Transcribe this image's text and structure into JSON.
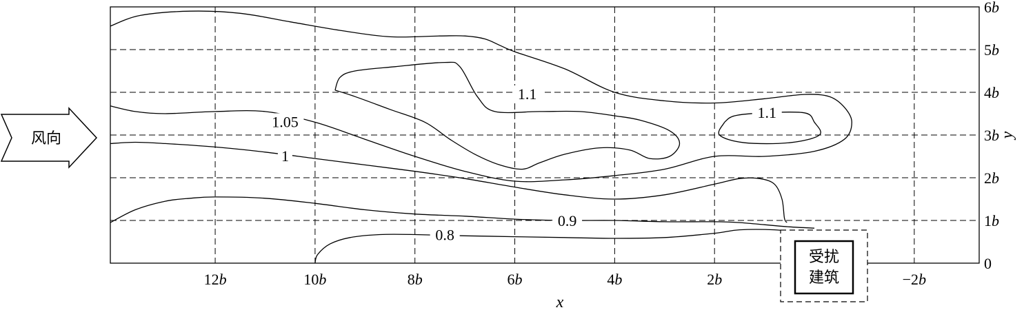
{
  "chart_data": {
    "type": "contour",
    "xlabel": "x",
    "ylabel": "y",
    "xlim": [
      14.1,
      -3.3
    ],
    "ylim": [
      0,
      6
    ],
    "x_ticks": [
      {
        "value": 12,
        "num": "12",
        "unit": "b"
      },
      {
        "value": 10,
        "num": "10",
        "unit": "b"
      },
      {
        "value": 8,
        "num": "8",
        "unit": "b"
      },
      {
        "value": 6,
        "num": "6",
        "unit": "b"
      },
      {
        "value": 4,
        "num": "4",
        "unit": "b"
      },
      {
        "value": 2,
        "num": "2",
        "unit": "b"
      },
      {
        "value": -2,
        "num": "−2",
        "unit": "b"
      }
    ],
    "y_ticks": [
      {
        "value": 0,
        "num": "0",
        "unit": ""
      },
      {
        "value": 1,
        "num": "1",
        "unit": "b"
      },
      {
        "value": 2,
        "num": "2",
        "unit": "b"
      },
      {
        "value": 3,
        "num": "3",
        "unit": "b"
      },
      {
        "value": 4,
        "num": "4",
        "unit": "b"
      },
      {
        "value": 5,
        "num": "5",
        "unit": "b"
      },
      {
        "value": 6,
        "num": "6",
        "unit": "b"
      }
    ],
    "grid": true,
    "contours": [
      {
        "level": "0.8",
        "label_at": [
          7.4,
          0.65
        ],
        "points": [
          [
            10.0,
            0.0
          ],
          [
            9.95,
            0.2
          ],
          [
            9.7,
            0.45
          ],
          [
            9.3,
            0.6
          ],
          [
            8.7,
            0.67
          ],
          [
            8.0,
            0.67
          ],
          [
            7.0,
            0.64
          ],
          [
            6.0,
            0.62
          ],
          [
            5.0,
            0.6
          ],
          [
            4.0,
            0.58
          ],
          [
            3.0,
            0.6
          ],
          [
            2.0,
            0.7
          ],
          [
            1.5,
            0.78
          ],
          [
            0.8,
            0.78
          ],
          [
            0.0,
            0.7
          ]
        ]
      },
      {
        "level": "0.9",
        "label_at": [
          4.95,
          0.98
        ],
        "points": [
          [
            14.1,
            0.95
          ],
          [
            13.6,
            1.25
          ],
          [
            13.0,
            1.45
          ],
          [
            12.5,
            1.52
          ],
          [
            12.0,
            1.55
          ],
          [
            11.0,
            1.52
          ],
          [
            10.0,
            1.4
          ],
          [
            9.0,
            1.25
          ],
          [
            8.0,
            1.15
          ],
          [
            7.0,
            1.1
          ],
          [
            6.0,
            1.03
          ],
          [
            5.0,
            1.0
          ],
          [
            4.0,
            1.0
          ],
          [
            3.0,
            0.97
          ],
          [
            2.0,
            0.97
          ],
          [
            1.5,
            0.95
          ],
          [
            1.0,
            0.9
          ],
          [
            0.5,
            0.85
          ],
          [
            0.0,
            0.82
          ]
        ]
      },
      {
        "level": "1",
        "label_at": [
          10.6,
          2.5
        ],
        "points": [
          [
            14.1,
            2.8
          ],
          [
            13.6,
            2.83
          ],
          [
            13.0,
            2.8
          ],
          [
            12.0,
            2.72
          ],
          [
            11.0,
            2.6
          ],
          [
            10.0,
            2.45
          ],
          [
            9.0,
            2.3
          ],
          [
            8.0,
            2.15
          ],
          [
            7.0,
            1.98
          ],
          [
            6.0,
            1.78
          ],
          [
            5.0,
            1.6
          ],
          [
            4.0,
            1.5
          ],
          [
            3.0,
            1.6
          ],
          [
            2.0,
            1.85
          ],
          [
            1.5,
            1.98
          ],
          [
            1.1,
            1.98
          ],
          [
            0.8,
            1.85
          ],
          [
            0.65,
            1.5
          ],
          [
            0.6,
            1.05
          ],
          [
            0.55,
            0.95
          ]
        ]
      },
      {
        "level": "1.05",
        "label_at": [
          10.6,
          3.3
        ],
        "points": [
          [
            14.1,
            3.68
          ],
          [
            13.6,
            3.55
          ],
          [
            13.0,
            3.5
          ],
          [
            12.0,
            3.55
          ],
          [
            11.0,
            3.55
          ],
          [
            10.0,
            3.3
          ],
          [
            9.0,
            2.9
          ],
          [
            8.0,
            2.5
          ],
          [
            7.0,
            2.15
          ],
          [
            6.0,
            1.92
          ],
          [
            5.0,
            1.95
          ],
          [
            4.0,
            2.05
          ],
          [
            3.0,
            2.2
          ],
          [
            2.0,
            2.5
          ],
          [
            1.0,
            2.5
          ],
          [
            0.0,
            2.62
          ],
          [
            -0.6,
            2.9
          ],
          [
            -0.75,
            3.3
          ],
          [
            -0.6,
            3.65
          ],
          [
            -0.3,
            3.9
          ],
          [
            0.2,
            3.95
          ],
          [
            1.0,
            3.85
          ],
          [
            2.0,
            3.75
          ],
          [
            3.0,
            3.8
          ],
          [
            4.0,
            4.0
          ],
          [
            5.0,
            4.55
          ],
          [
            6.0,
            4.95
          ],
          [
            6.3,
            5.1
          ],
          [
            6.6,
            5.25
          ],
          [
            7.0,
            5.32
          ],
          [
            7.5,
            5.32
          ],
          [
            8.5,
            5.3
          ],
          [
            9.5,
            5.45
          ],
          [
            10.5,
            5.65
          ],
          [
            11.5,
            5.85
          ],
          [
            12.5,
            5.9
          ],
          [
            13.5,
            5.8
          ],
          [
            14.1,
            5.55
          ]
        ]
      },
      {
        "level": "1.1",
        "label_at": [
          5.75,
          3.95
        ],
        "points": [
          [
            9.6,
            4.05
          ],
          [
            9.2,
            3.9
          ],
          [
            8.5,
            3.6
          ],
          [
            7.8,
            3.3
          ],
          [
            7.3,
            2.9
          ],
          [
            6.8,
            2.55
          ],
          [
            6.3,
            2.3
          ],
          [
            5.85,
            2.2
          ],
          [
            5.5,
            2.35
          ],
          [
            5.0,
            2.55
          ],
          [
            4.3,
            2.7
          ],
          [
            3.7,
            2.65
          ],
          [
            3.3,
            2.45
          ],
          [
            2.9,
            2.5
          ],
          [
            2.7,
            2.8
          ],
          [
            2.9,
            3.1
          ],
          [
            3.5,
            3.35
          ],
          [
            4.0,
            3.45
          ],
          [
            4.7,
            3.55
          ],
          [
            5.5,
            3.55
          ],
          [
            6.4,
            3.55
          ],
          [
            6.75,
            3.9
          ],
          [
            7.1,
            4.6
          ],
          [
            7.4,
            4.7
          ],
          [
            8.4,
            4.6
          ],
          [
            9.2,
            4.5
          ],
          [
            9.5,
            4.35
          ],
          [
            9.6,
            4.05
          ]
        ]
      },
      {
        "level": "1.1",
        "label_at": [
          0.95,
          3.52
        ],
        "points": [
          [
            1.8,
            3.3
          ],
          [
            1.9,
            3.0
          ],
          [
            1.4,
            2.82
          ],
          [
            0.5,
            2.82
          ],
          [
            -0.1,
            3.0
          ],
          [
            0.0,
            3.3
          ],
          [
            0.2,
            3.52
          ],
          [
            1.0,
            3.52
          ],
          [
            1.6,
            3.45
          ],
          [
            1.8,
            3.3
          ]
        ]
      }
    ]
  },
  "wind_arrow": {
    "label": "风向"
  },
  "building": {
    "line1": "受扰",
    "line2": "建筑"
  }
}
